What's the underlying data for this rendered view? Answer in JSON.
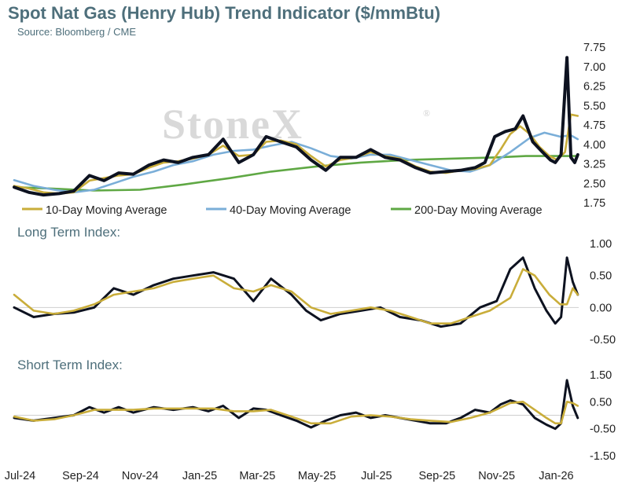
{
  "title": "Spot Nat Gas (Henry Hub) Trend Indicator ($/mmBtu)",
  "source": "Source: Bloomberg / CME",
  "watermark": "StoneX",
  "watermark_mark": "®",
  "colors": {
    "price": "#0d1220",
    "ma10": "#c9ad3a",
    "ma40": "#7aaed8",
    "ma200": "#5fa844",
    "index": "#0d1220",
    "grid": "#cfcfcf",
    "text": "#4e6f7b"
  },
  "x_axis": {
    "labels": [
      "Jul-24",
      "Sep-24",
      "Nov-24",
      "Jan-25",
      "Mar-25",
      "May-25",
      "Jul-25",
      "Sep-25",
      "Nov-25",
      "Jan-26"
    ],
    "label_dates": [
      "2024-07-01",
      "2024-09-01",
      "2024-11-01",
      "2025-01-01",
      "2025-03-01",
      "2025-05-01",
      "2025-07-01",
      "2025-09-01",
      "2025-11-01",
      "2026-01-01"
    ],
    "start": "2024-06-25",
    "end": "2026-01-24"
  },
  "chart_data": [
    {
      "type": "line",
      "title": "Spot Nat Gas (Henry Hub) Trend Indicator ($/mmBtu)",
      "ylim": [
        1.75,
        7.75
      ],
      "yticks": [
        "7.75",
        "7.00",
        "6.25",
        "5.50",
        "4.75",
        "4.00",
        "3.25",
        "2.50",
        "1.75"
      ],
      "ytick_values": [
        7.75,
        7.0,
        6.25,
        5.5,
        4.75,
        4.0,
        3.25,
        2.5,
        1.75
      ],
      "legend": [
        "10-Day Moving Average",
        "40-Day Moving Average",
        "200-Day Moving Average"
      ],
      "legend_position": "bottom",
      "series": [
        {
          "key": "price",
          "x": [
            "2024-06-25",
            "2024-07-10",
            "2024-07-25",
            "2024-08-10",
            "2024-08-25",
            "2024-09-10",
            "2024-09-25",
            "2024-10-10",
            "2024-10-25",
            "2024-11-10",
            "2024-11-25",
            "2024-12-10",
            "2024-12-25",
            "2025-01-10",
            "2025-01-25",
            "2025-02-10",
            "2025-02-25",
            "2025-03-10",
            "2025-03-25",
            "2025-04-10",
            "2025-04-25",
            "2025-05-10",
            "2025-05-25",
            "2025-06-10",
            "2025-06-25",
            "2025-07-10",
            "2025-07-25",
            "2025-08-10",
            "2025-08-25",
            "2025-09-10",
            "2025-09-25",
            "2025-10-10",
            "2025-10-20",
            "2025-10-30",
            "2025-11-10",
            "2025-11-20",
            "2025-11-28",
            "2025-12-08",
            "2025-12-18",
            "2025-12-26",
            "2025-12-31",
            "2026-01-06",
            "2026-01-12",
            "2026-01-16",
            "2026-01-20",
            "2026-01-23"
          ],
          "y": [
            2.35,
            2.15,
            2.05,
            2.1,
            2.2,
            2.8,
            2.6,
            2.9,
            2.85,
            3.2,
            3.4,
            3.3,
            3.5,
            3.6,
            4.2,
            3.3,
            3.6,
            4.3,
            4.1,
            3.9,
            3.4,
            3.0,
            3.5,
            3.5,
            3.8,
            3.5,
            3.4,
            3.1,
            2.9,
            2.95,
            3.0,
            3.1,
            3.3,
            4.3,
            4.5,
            4.6,
            5.1,
            4.1,
            3.7,
            3.4,
            3.3,
            3.6,
            7.35,
            3.5,
            3.3,
            3.6
          ]
        },
        {
          "key": "ma10",
          "x": [
            "2024-06-25",
            "2024-07-10",
            "2024-07-25",
            "2024-08-10",
            "2024-08-25",
            "2024-09-10",
            "2024-09-25",
            "2024-10-10",
            "2024-10-25",
            "2024-11-10",
            "2024-11-25",
            "2024-12-10",
            "2024-12-25",
            "2025-01-10",
            "2025-01-25",
            "2025-02-10",
            "2025-02-25",
            "2025-03-10",
            "2025-03-25",
            "2025-04-10",
            "2025-04-25",
            "2025-05-10",
            "2025-05-25",
            "2025-06-10",
            "2025-06-25",
            "2025-07-10",
            "2025-07-25",
            "2025-08-10",
            "2025-08-25",
            "2025-09-10",
            "2025-09-25",
            "2025-10-10",
            "2025-10-25",
            "2025-11-05",
            "2025-11-15",
            "2025-11-25",
            "2025-12-05",
            "2025-12-15",
            "2025-12-25",
            "2026-01-02",
            "2026-01-10",
            "2026-01-16",
            "2026-01-23"
          ],
          "y": [
            2.4,
            2.3,
            2.15,
            2.1,
            2.15,
            2.6,
            2.7,
            2.8,
            2.85,
            3.1,
            3.3,
            3.35,
            3.45,
            3.6,
            3.95,
            3.55,
            3.6,
            4.1,
            4.15,
            4.0,
            3.55,
            3.15,
            3.4,
            3.5,
            3.7,
            3.55,
            3.45,
            3.15,
            2.95,
            2.9,
            3.0,
            3.05,
            3.2,
            3.8,
            4.4,
            4.7,
            4.4,
            3.9,
            3.55,
            3.4,
            3.7,
            5.15,
            5.1
          ]
        },
        {
          "key": "ma40",
          "x": [
            "2024-06-25",
            "2024-07-15",
            "2024-08-05",
            "2024-08-25",
            "2024-09-15",
            "2024-10-05",
            "2024-10-25",
            "2024-11-15",
            "2024-12-05",
            "2024-12-25",
            "2025-01-15",
            "2025-02-05",
            "2025-02-25",
            "2025-03-15",
            "2025-04-05",
            "2025-04-25",
            "2025-05-15",
            "2025-06-05",
            "2025-06-25",
            "2025-07-15",
            "2025-08-05",
            "2025-08-25",
            "2025-09-15",
            "2025-10-05",
            "2025-10-25",
            "2025-11-15",
            "2025-12-05",
            "2025-12-20",
            "2026-01-05",
            "2026-01-16",
            "2026-01-23"
          ],
          "y": [
            2.62,
            2.4,
            2.25,
            2.15,
            2.25,
            2.5,
            2.75,
            2.95,
            3.2,
            3.35,
            3.6,
            3.75,
            3.8,
            3.95,
            4.1,
            3.85,
            3.55,
            3.45,
            3.6,
            3.6,
            3.4,
            3.2,
            3.0,
            2.95,
            3.2,
            3.7,
            4.25,
            4.45,
            4.3,
            4.35,
            4.2
          ]
        },
        {
          "key": "ma200",
          "x": [
            "2024-06-25",
            "2024-08-01",
            "2024-09-15",
            "2024-11-01",
            "2024-12-15",
            "2025-02-01",
            "2025-03-15",
            "2025-05-01",
            "2025-06-15",
            "2025-08-01",
            "2025-09-15",
            "2025-11-01",
            "2025-12-01",
            "2026-01-01",
            "2026-01-23"
          ],
          "y": [
            2.35,
            2.3,
            2.22,
            2.25,
            2.45,
            2.7,
            2.95,
            3.15,
            3.3,
            3.4,
            3.45,
            3.5,
            3.55,
            3.55,
            3.55
          ]
        }
      ]
    },
    {
      "type": "line",
      "title": "Long Term Index:",
      "ylim": [
        -0.5,
        1.0
      ],
      "yticks": [
        "1.00",
        "0.50",
        "0.00",
        "-0.50"
      ],
      "ytick_values": [
        1.0,
        0.5,
        0.0,
        -0.5
      ],
      "series": [
        {
          "key": "index",
          "x": [
            "2024-06-25",
            "2024-07-15",
            "2024-08-05",
            "2024-08-25",
            "2024-09-15",
            "2024-10-05",
            "2024-10-25",
            "2024-11-15",
            "2024-12-05",
            "2024-12-25",
            "2025-01-15",
            "2025-02-05",
            "2025-02-25",
            "2025-03-15",
            "2025-04-05",
            "2025-04-20",
            "2025-05-05",
            "2025-05-25",
            "2025-06-15",
            "2025-07-05",
            "2025-07-25",
            "2025-08-15",
            "2025-09-05",
            "2025-09-25",
            "2025-10-15",
            "2025-11-01",
            "2025-11-15",
            "2025-11-28",
            "2025-12-10",
            "2025-12-22",
            "2025-12-31",
            "2026-01-06",
            "2026-01-12",
            "2026-01-18",
            "2026-01-23"
          ],
          "y": [
            0.0,
            -0.15,
            -0.1,
            -0.08,
            0.0,
            0.3,
            0.2,
            0.35,
            0.45,
            0.5,
            0.55,
            0.45,
            0.1,
            0.45,
            0.2,
            -0.05,
            -0.2,
            -0.1,
            -0.05,
            0.0,
            -0.15,
            -0.2,
            -0.3,
            -0.25,
            0.0,
            0.1,
            0.6,
            0.78,
            0.3,
            -0.05,
            -0.25,
            -0.15,
            0.78,
            0.4,
            0.2
          ]
        },
        {
          "key": "ma10",
          "x": [
            "2024-06-25",
            "2024-07-15",
            "2024-08-05",
            "2024-08-25",
            "2024-09-15",
            "2024-10-05",
            "2024-10-25",
            "2024-11-15",
            "2024-12-05",
            "2024-12-25",
            "2025-01-15",
            "2025-02-05",
            "2025-02-25",
            "2025-03-15",
            "2025-04-05",
            "2025-04-25",
            "2025-05-15",
            "2025-06-05",
            "2025-06-25",
            "2025-07-15",
            "2025-08-05",
            "2025-08-25",
            "2025-09-15",
            "2025-10-05",
            "2025-10-25",
            "2025-11-15",
            "2025-11-28",
            "2025-12-10",
            "2025-12-25",
            "2026-01-05",
            "2026-01-12",
            "2026-01-18",
            "2026-01-23"
          ],
          "y": [
            0.2,
            -0.05,
            -0.1,
            -0.05,
            0.05,
            0.2,
            0.25,
            0.3,
            0.4,
            0.45,
            0.5,
            0.3,
            0.25,
            0.35,
            0.25,
            0.0,
            -0.1,
            -0.05,
            0.0,
            -0.05,
            -0.15,
            -0.25,
            -0.25,
            -0.15,
            -0.05,
            0.15,
            0.6,
            0.5,
            0.2,
            0.05,
            0.05,
            0.3,
            0.2
          ]
        }
      ]
    },
    {
      "type": "line",
      "title": "Short Term Index:",
      "ylim": [
        -1.5,
        1.5
      ],
      "yticks": [
        "1.50",
        "0.50",
        "-0.50",
        "-1.50"
      ],
      "ytick_values": [
        1.5,
        0.5,
        -0.5,
        -1.5
      ],
      "series": [
        {
          "key": "index",
          "x": [
            "2024-06-25",
            "2024-07-15",
            "2024-08-05",
            "2024-08-25",
            "2024-09-10",
            "2024-09-25",
            "2024-10-10",
            "2024-10-25",
            "2024-11-15",
            "2024-12-05",
            "2024-12-25",
            "2025-01-10",
            "2025-01-25",
            "2025-02-10",
            "2025-02-25",
            "2025-03-10",
            "2025-03-25",
            "2025-04-10",
            "2025-04-25",
            "2025-05-10",
            "2025-05-25",
            "2025-06-10",
            "2025-06-25",
            "2025-07-10",
            "2025-07-25",
            "2025-08-10",
            "2025-08-25",
            "2025-09-10",
            "2025-09-25",
            "2025-10-10",
            "2025-10-25",
            "2025-11-05",
            "2025-11-15",
            "2025-11-28",
            "2025-12-10",
            "2025-12-22",
            "2025-12-31",
            "2026-01-06",
            "2026-01-12",
            "2026-01-18",
            "2026-01-23"
          ],
          "y": [
            -0.1,
            -0.2,
            -0.1,
            0.0,
            0.3,
            0.1,
            0.3,
            0.1,
            0.3,
            0.2,
            0.3,
            0.15,
            0.35,
            -0.1,
            0.25,
            0.2,
            0.0,
            -0.2,
            -0.45,
            -0.2,
            0.0,
            0.1,
            -0.1,
            0.0,
            -0.1,
            -0.2,
            -0.3,
            -0.3,
            -0.1,
            0.2,
            0.1,
            0.4,
            0.55,
            0.4,
            -0.1,
            -0.35,
            -0.5,
            -0.3,
            1.3,
            0.35,
            -0.1
          ]
        },
        {
          "key": "ma10",
          "x": [
            "2024-06-25",
            "2024-07-15",
            "2024-08-05",
            "2024-08-25",
            "2024-09-15",
            "2024-10-05",
            "2024-10-25",
            "2024-11-15",
            "2024-12-05",
            "2024-12-25",
            "2025-01-15",
            "2025-02-05",
            "2025-02-25",
            "2025-03-15",
            "2025-04-05",
            "2025-04-25",
            "2025-05-15",
            "2025-06-05",
            "2025-06-25",
            "2025-07-15",
            "2025-08-05",
            "2025-08-25",
            "2025-09-15",
            "2025-10-05",
            "2025-10-25",
            "2025-11-15",
            "2025-11-28",
            "2025-12-10",
            "2025-12-22",
            "2025-12-31",
            "2026-01-06",
            "2026-01-12",
            "2026-01-18",
            "2026-01-23"
          ],
          "y": [
            -0.05,
            -0.2,
            -0.15,
            0.0,
            0.2,
            0.2,
            0.2,
            0.25,
            0.25,
            0.25,
            0.25,
            0.15,
            0.15,
            0.2,
            -0.05,
            -0.3,
            -0.3,
            -0.05,
            0.0,
            -0.05,
            -0.15,
            -0.2,
            -0.25,
            -0.1,
            0.1,
            0.45,
            0.5,
            0.2,
            -0.1,
            -0.3,
            -0.3,
            0.5,
            0.45,
            0.35
          ]
        }
      ]
    }
  ]
}
